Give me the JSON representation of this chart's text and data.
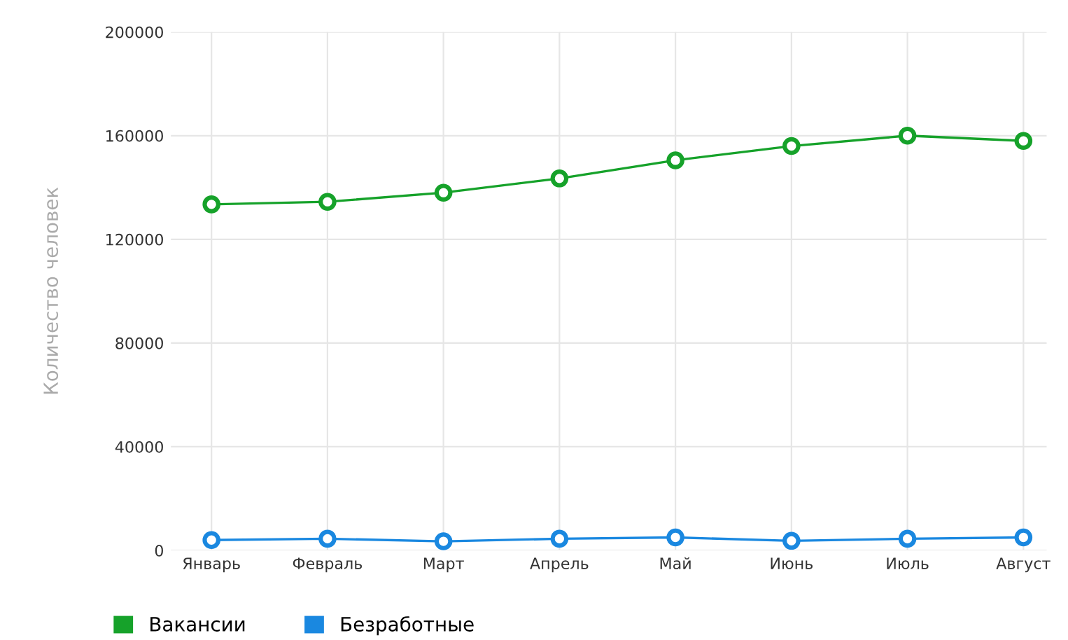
{
  "chart_data": {
    "type": "line",
    "ylabel": "Количество человек",
    "categories": [
      "Январь",
      "Февраль",
      "Март",
      "Апрель",
      "Май",
      "Июнь",
      "Июль",
      "Август"
    ],
    "series": [
      {
        "name": "Вакансии",
        "color": "#16a22a",
        "values": [
          133500,
          134500,
          138000,
          143500,
          150500,
          156000,
          160000,
          158000
        ]
      },
      {
        "name": "Безработные",
        "color": "#1a88e0",
        "values": [
          4000,
          4500,
          3500,
          4500,
          5000,
          3700,
          4500,
          5000
        ]
      }
    ],
    "ylim": [
      0,
      200000
    ],
    "yticks": [
      0,
      40000,
      80000,
      120000,
      160000,
      200000
    ],
    "grid": true,
    "legend": "bottom left",
    "marker": "circle",
    "line_style": "solid"
  }
}
